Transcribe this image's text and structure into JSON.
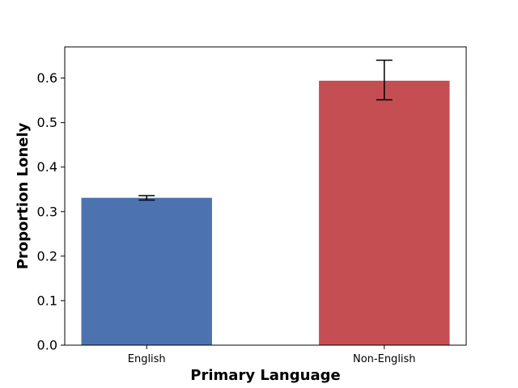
{
  "chart_data": {
    "type": "bar",
    "title": "",
    "xlabel": "Primary Language",
    "ylabel": "Proportion Lonely",
    "categories": [
      "English",
      "Non-English"
    ],
    "values": [
      0.331,
      0.594
    ],
    "error_low": [
      0.326,
      0.551
    ],
    "error_high": [
      0.336,
      0.64
    ],
    "colors": [
      "#4c72b0",
      "#c44e52"
    ],
    "ylim": [
      0,
      0.67
    ],
    "yticks": [
      0.0,
      0.1,
      0.2,
      0.3,
      0.4,
      0.5,
      0.6
    ],
    "ytick_labels": [
      "0.0",
      "0.1",
      "0.2",
      "0.3",
      "0.4",
      "0.5",
      "0.6"
    ],
    "grid": false,
    "legend": "none"
  }
}
